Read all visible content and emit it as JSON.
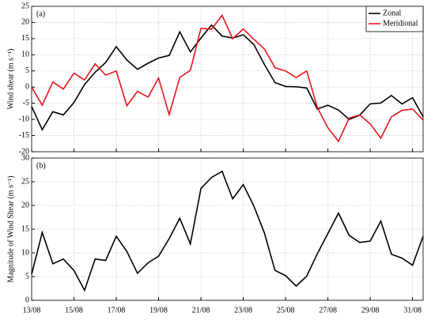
{
  "chart_data": [
    {
      "type": "line",
      "annotation": "(a)",
      "ylabel": "Wind shear (m s⁻¹)",
      "x": [
        13,
        13.5,
        14,
        14.5,
        15,
        15.5,
        16,
        16.5,
        17,
        17.5,
        18,
        18.5,
        19,
        19.5,
        20,
        20.5,
        21,
        21.5,
        22,
        22.5,
        23,
        23.5,
        24,
        24.5,
        25,
        25.5,
        26,
        26.5,
        27,
        27.5,
        28,
        28.5,
        29,
        29.5,
        30,
        30.5,
        31,
        31.5
      ],
      "series": [
        {
          "name": "Zonal",
          "color": "#000000",
          "values": [
            -6,
            -13.2,
            -7.6,
            -8.6,
            -4.8,
            0.8,
            4.6,
            7.6,
            12.5,
            8.4,
            5.5,
            7.4,
            9,
            9.8,
            17.1,
            10.9,
            15.2,
            19.2,
            15.8,
            15.2,
            16.2,
            13.2,
            7,
            1.4,
            0.2,
            0.1,
            -0.3,
            -6.8,
            -5.6,
            -7.1,
            -10,
            -8.7,
            -5.2,
            -4.9,
            -2.6,
            -5.2,
            -3.3,
            -9.2
          ]
        },
        {
          "name": "Meridional",
          "color": "#e8141c",
          "values": [
            0,
            -5.6,
            1.6,
            -0.6,
            4.3,
            2.2,
            7.2,
            3.7,
            5,
            -5.8,
            -1.3,
            -3.1,
            2.8,
            -8.5,
            3,
            5.2,
            18.2,
            17.9,
            22.2,
            15,
            18,
            14.8,
            11.8,
            6,
            5,
            3,
            5,
            -6.3,
            -12.6,
            -16.8,
            -9.6,
            -8.6,
            -11.4,
            -15.8,
            -9.2,
            -7.2,
            -6.8,
            -10.2
          ]
        }
      ],
      "xlim": [
        13,
        31.5
      ],
      "xticks": [
        13,
        15,
        17,
        19,
        21,
        23,
        25,
        27,
        29,
        31
      ],
      "ylim": [
        -20,
        25
      ],
      "yticks": [
        -20,
        -15,
        -10,
        -5,
        0,
        5,
        10,
        15,
        20,
        25
      ],
      "grid": true,
      "legend": "upper right"
    },
    {
      "type": "line",
      "annotation": "(b)",
      "ylabel": "Magnitude of Wind Shear (m s⁻¹)",
      "x": [
        13,
        13.5,
        14,
        14.5,
        15,
        15.5,
        16,
        16.5,
        17,
        17.5,
        18,
        18.5,
        19,
        19.5,
        20,
        20.5,
        21,
        21.5,
        22,
        22.5,
        23,
        23.5,
        24,
        24.5,
        25,
        25.5,
        26,
        26.5,
        27,
        27.5,
        28,
        28.5,
        29,
        29.5,
        30,
        30.5,
        31,
        31.5
      ],
      "series": [
        {
          "color": "#000000",
          "values": [
            5.5,
            14.3,
            7.7,
            8.7,
            6.3,
            2.1,
            8.7,
            8.4,
            13.5,
            10.3,
            5.7,
            7.9,
            9.3,
            13,
            17.3,
            11.9,
            23.6,
            25.9,
            27.2,
            21.4,
            24.4,
            19.9,
            14.2,
            6.3,
            5.2,
            3,
            5.1,
            9.8,
            14.1,
            18.4,
            13.7,
            12.2,
            12.5,
            16.7,
            9.7,
            8.9,
            7.4,
            13.5
          ]
        }
      ],
      "xlim": [
        13,
        31.5
      ],
      "xticks": [
        {
          "value": 13,
          "label": "13/08"
        },
        {
          "value": 15,
          "label": "15/08"
        },
        {
          "value": 17,
          "label": "17/08"
        },
        {
          "value": 19,
          "label": "19/08"
        },
        {
          "value": 21,
          "label": "21/08"
        },
        {
          "value": 23,
          "label": "23/08"
        },
        {
          "value": 25,
          "label": "25/08"
        },
        {
          "value": 27,
          "label": "27/08"
        },
        {
          "value": 29,
          "label": "29/08"
        },
        {
          "value": 31,
          "label": "31/08"
        }
      ],
      "ylim": [
        0,
        30
      ],
      "yticks": [
        0,
        5,
        10,
        15,
        20,
        25,
        30
      ],
      "grid": true
    }
  ]
}
